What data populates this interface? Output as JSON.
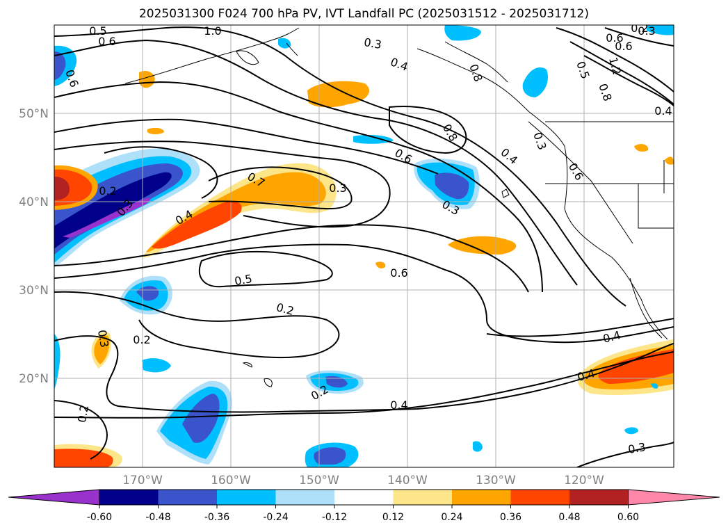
{
  "title": "2025031300 F024 700 hPa PV, IVT Landfall PC (2025031512 - 2025031712)",
  "map": {
    "lon_labels": [
      "170°W",
      "160°W",
      "150°W",
      "140°W",
      "130°W",
      "120°W"
    ],
    "lat_labels": [
      "50°N",
      "40°N",
      "30°N",
      "20°N"
    ]
  },
  "contour_labels": [
    "0.5",
    "1.0",
    "0.6",
    "0.6",
    "0.3",
    "0.4",
    "0.8",
    "0.6",
    "0.6",
    "0.5",
    "0.8",
    "1.2",
    "0.4",
    "0.8",
    "0.3",
    "0.6",
    "0.4",
    "0.7",
    "0.6",
    "0.3",
    "0.2",
    "0.3",
    "0.4",
    "0.3",
    "0.5",
    "0.6",
    "0.2",
    "0.3",
    "0.2",
    "0.2",
    "0.4",
    "0.4",
    "0.2",
    "0.4",
    "0.3",
    "0.3",
    "0.2"
  ],
  "colorbar": {
    "ticks": [
      "-0.60",
      "-0.48",
      "-0.36",
      "-0.24",
      "-0.12",
      "0.12",
      "0.24",
      "0.36",
      "0.48",
      "0.60"
    ],
    "colors": [
      "#9932cc",
      "#00008b",
      "#3a55cc",
      "#00bfff",
      "#aee0fa",
      "#ffffff",
      "#fde68a",
      "#ffa500",
      "#ff4500",
      "#b22222",
      "#ff88aa"
    ]
  }
}
